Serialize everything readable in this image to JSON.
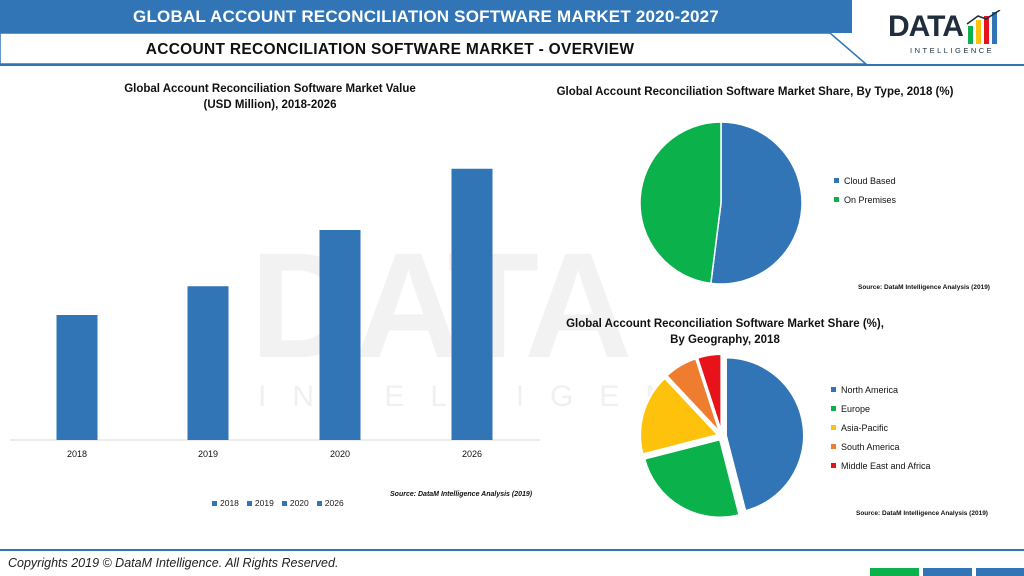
{
  "header": {
    "title": "GLOBAL ACCOUNT RECONCILIATION SOFTWARE MARKET 2020-2027",
    "subtitle": "ACCOUNT RECONCILIATION SOFTWARE MARKET - OVERVIEW"
  },
  "logo": {
    "word": "DATA",
    "sub": "INTELLIGENCE"
  },
  "watermark": {
    "word": "DATA",
    "sub": "INTELLIGENCE"
  },
  "colors": {
    "brand_blue": "#3175b6",
    "green": "#0bb14a",
    "yellow": "#fec10c",
    "orange": "#ef7d30",
    "red": "#e8121b"
  },
  "chart_data": [
    {
      "type": "bar",
      "title_line1": "Global Account Reconciliation Software Market Value",
      "title_line2": "(USD Million), 2018-2026",
      "categories": [
        "2018",
        "2019",
        "2020",
        "2026"
      ],
      "values": [
        100,
        123,
        168,
        217
      ],
      "ylim": [
        0,
        240
      ],
      "legend": [
        "2018",
        "2019",
        "2020",
        "2026"
      ],
      "legend_position": "bottom",
      "grid": false,
      "source": "Source: DataM Intelligence Analysis (2019)"
    },
    {
      "type": "pie",
      "title": "Global Account Reconciliation Software Market Share, By Type, 2018 (%)",
      "labels": [
        "Cloud Based",
        "On Premises"
      ],
      "values": [
        52,
        48
      ],
      "colors": [
        "#3175b6",
        "#0bb14a"
      ],
      "legend_position": "right",
      "source": "Source: DataM Intelligence Analysis (2019)"
    },
    {
      "type": "pie",
      "title_line1": "Global Account Reconciliation Software Market Share (%),",
      "title_line2": "By Geography, 2018",
      "labels": [
        "North America",
        "Europe",
        "Asia-Pacific",
        "South America",
        "Middle East and Africa"
      ],
      "values": [
        46,
        25,
        17,
        7,
        5
      ],
      "colors": [
        "#3175b6",
        "#0bb14a",
        "#fec10c",
        "#ef7d30",
        "#e8121b"
      ],
      "exploded": true,
      "legend_position": "right",
      "source": "Source: DataM Intelligence Analysis (2019)"
    }
  ],
  "footer": {
    "copyright": "Copyrights 2019 © DataM Intelligence. All Rights Reserved.",
    "blocks": [
      "#0bb14a",
      "#3175b6",
      "#3175b6"
    ]
  }
}
